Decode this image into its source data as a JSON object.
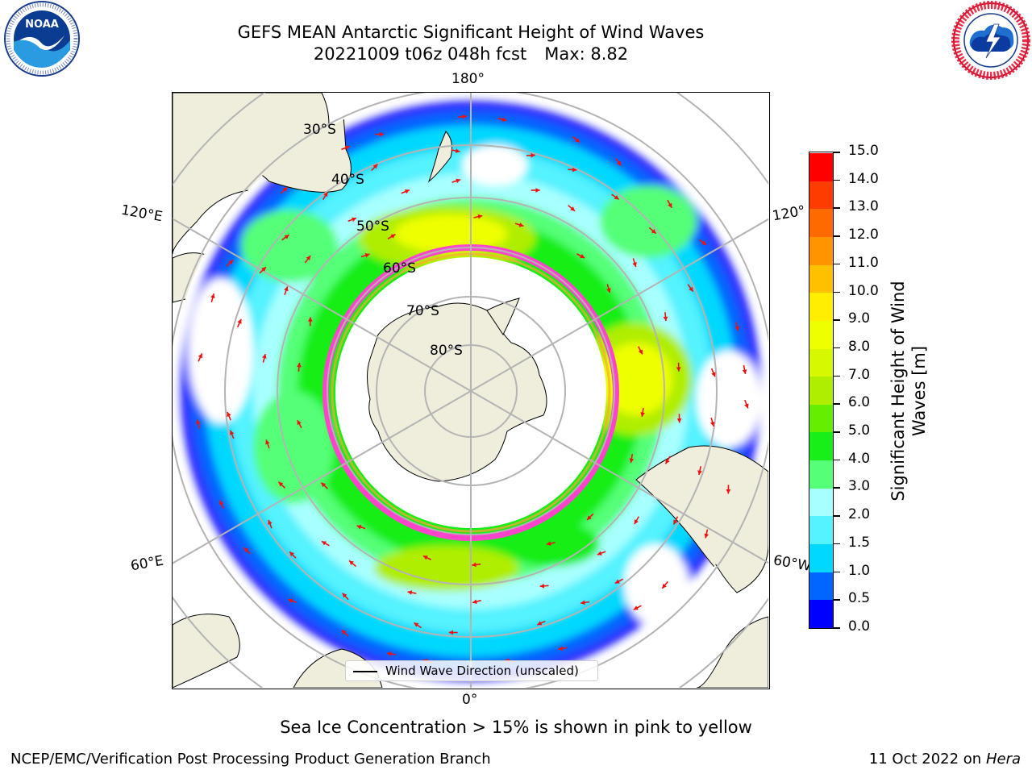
{
  "header": {
    "title": "GEFS MEAN Antarctic Significant Height of Wind Waves",
    "run_info": "20221009 t06z 048h fcst",
    "max_label": "Max: 8.82"
  },
  "logos": {
    "noaa_text": "NOAA",
    "noaa_ring_text": "NATIONAL OCEANIC AND ATMOSPHERIC ADMINISTRATION · U.S. DEPARTMENT OF COMMERCE",
    "nws_ring_text": "NATIONAL WEATHER SERVICE"
  },
  "map": {
    "projection": "South Polar Stereographic",
    "longitude_labels": {
      "top": "180°",
      "upper_left": "120°E",
      "upper_right": "120°",
      "lower_left": "60°E",
      "lower_right": "60°W",
      "bottom": "0°"
    },
    "latitude_labels": [
      "30°S",
      "40°S",
      "50°S",
      "60°S",
      "70°S",
      "80°S"
    ],
    "legend_label": "Wind Wave Direction (unscaled)",
    "colors": {
      "land": "#efeddb",
      "sea_ice_edge": "#ff44cc",
      "arrow": "#ee1111",
      "grid": "#b4b4b4"
    }
  },
  "colorbar": {
    "title_line1": "Significant Height of Wind",
    "title_line2": "Waves [m]",
    "ticks": [
      "0.0",
      "0.5",
      "1.0",
      "1.5",
      "2.0",
      "3.0",
      "4.0",
      "5.0",
      "6.0",
      "7.0",
      "8.0",
      "9.0",
      "10.0",
      "11.0",
      "12.0",
      "13.0",
      "14.0",
      "15.0"
    ],
    "colors": [
      "#0000ff",
      "#0066ff",
      "#00d8ff",
      "#55f2ff",
      "#a8ffff",
      "#55ff77",
      "#18ee18",
      "#66ee00",
      "#b0ee00",
      "#d6f800",
      "#eeff00",
      "#ffee00",
      "#ffc000",
      "#ff9400",
      "#ff6a00",
      "#ff3c00",
      "#ff0000"
    ]
  },
  "footnote": "Sea Ice Concentration > 15% is shown in pink to yellow",
  "footer": {
    "left": "NCEP/EMC/Verification Post Processing Product Generation Branch",
    "right_date": "11 Oct 2022 on",
    "right_machine": "Hera"
  }
}
